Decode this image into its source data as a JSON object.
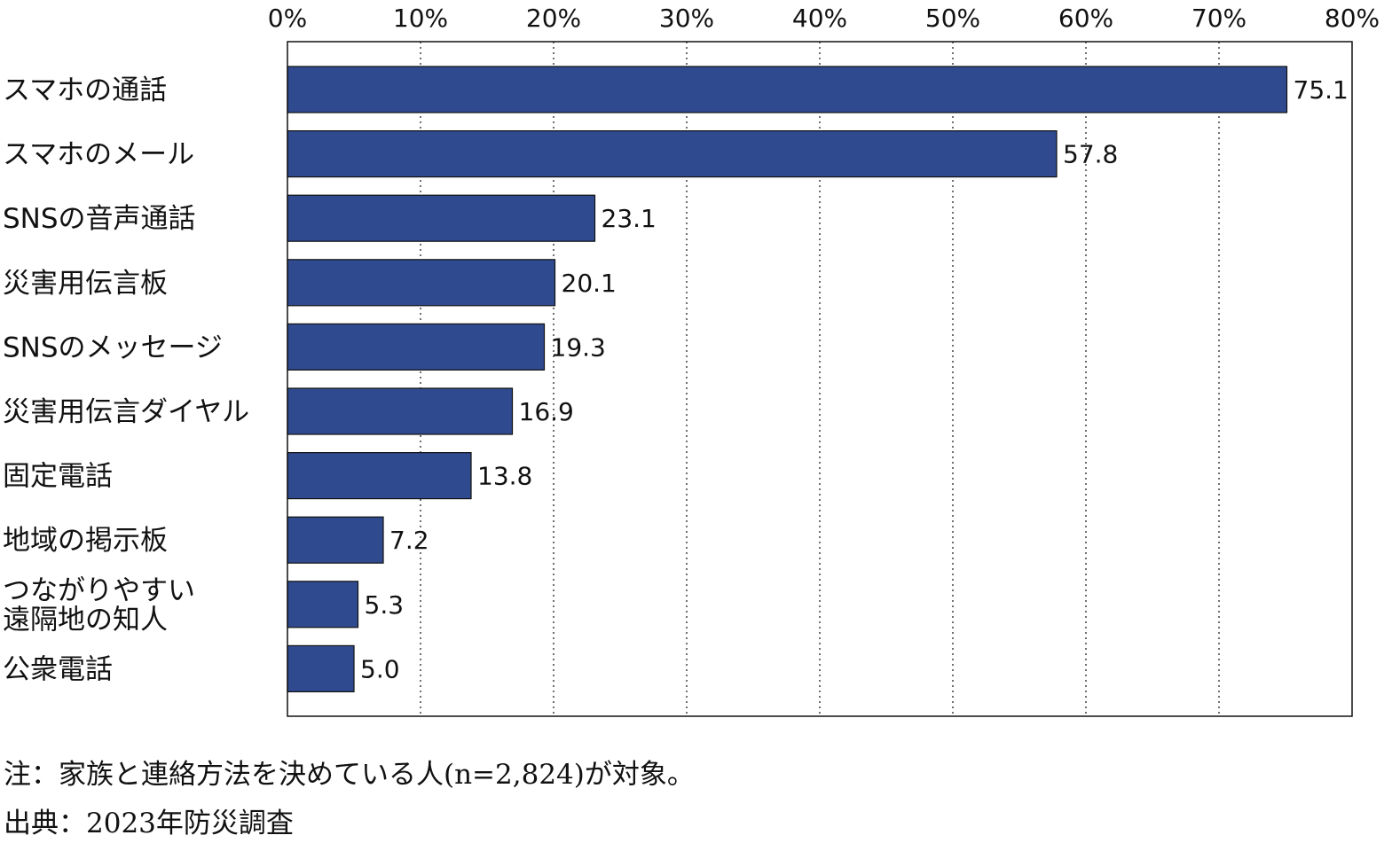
{
  "chart_data": {
    "type": "bar",
    "orientation": "horizontal",
    "categories": [
      "スマホの通話",
      "スマホのメール",
      "SNSの音声通話",
      "災害用伝言板",
      "SNSのメッセージ",
      "災害用伝言ダイヤル",
      "固定電話",
      "地域の掲示板",
      "つながりやすい\n遠隔地の知人",
      "公衆電話"
    ],
    "values": [
      75.1,
      57.8,
      23.1,
      20.1,
      19.3,
      16.9,
      13.8,
      7.2,
      5.3,
      5.0
    ],
    "value_labels": [
      "75.1",
      "57.8",
      "23.1",
      "20.1",
      "19.3",
      "16.9",
      "13.8",
      "7.2",
      "5.3",
      "5.0"
    ],
    "xlim": [
      0,
      80
    ],
    "x_ticks": [
      "0%",
      "10%",
      "20%",
      "30%",
      "40%",
      "50%",
      "60%",
      "70%",
      "80%"
    ],
    "x_tick_values": [
      0,
      10,
      20,
      30,
      40,
      50,
      60,
      70,
      80
    ],
    "x_axis_position": "top",
    "grid": "vertical dotted",
    "bar_color": "#2f4a8f",
    "title": "",
    "xlabel": "",
    "ylabel": ""
  },
  "notes": {
    "note": "注：家族と連絡方法を決めている人(n=2,824)が対象。",
    "source": "出典：2023年防災調査"
  }
}
